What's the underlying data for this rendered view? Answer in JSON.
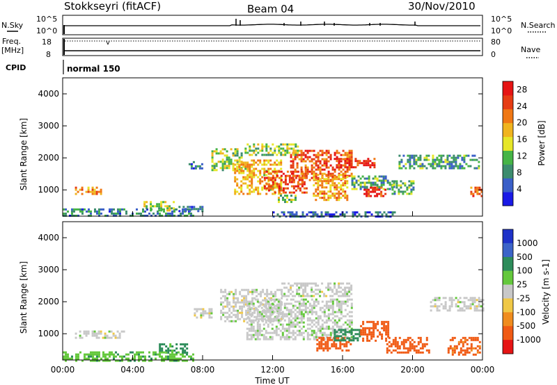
{
  "header": {
    "station": "Stokkseyri (fitACF)",
    "beam": "Beam 04",
    "date": "30/Nov/2010"
  },
  "strip_labels": {
    "nsky_label": "N.Sky",
    "nsky_top": "10^5",
    "nsky_bottom": "10^0",
    "nsearch_label": "N.Search",
    "nsearch_top": "10^5",
    "nsearch_bottom": "10^0",
    "freq_label_1": "Freq.",
    "freq_label_2": "[MHz]",
    "freq_top": "18",
    "freq_bottom": "8",
    "nave_label": "Nave",
    "nave_top": "80",
    "nave_bottom": "0",
    "cpid_label": "CPID",
    "cpid_value": "normal 150"
  },
  "colors": {
    "power": [
      "#1a1ae6",
      "#3a5fc8",
      "#3c8c6e",
      "#46b446",
      "#e6e628",
      "#f0b41e",
      "#f07814",
      "#e63c14",
      "#e61414"
    ],
    "velocity": [
      "#e61414",
      "#f05a14",
      "#f08c1e",
      "#f0c846",
      "#c8c8c8",
      "#64c83c",
      "#2d8c5a",
      "#3c64c8",
      "#1e32c8"
    ]
  },
  "chart_data": [
    {
      "type": "heatmap",
      "title": "Power",
      "xlabel": "",
      "ylabel": "Slant Range [km]",
      "xlim": [
        "00:00",
        "00:00"
      ],
      "ylim": [
        180,
        4500
      ],
      "x_ticks": [
        "00:00",
        "04:00",
        "08:00",
        "12:00",
        "16:00",
        "20:00",
        "00:00"
      ],
      "y_ticks": [
        "1000",
        "2000",
        "3000",
        "4000"
      ],
      "colorbar_label": "Power [dB]",
      "colorbar_ticks": [
        "4",
        "8",
        "12",
        "16",
        "20",
        "24",
        "28"
      ],
      "colorbar_range": [
        0,
        30
      ],
      "regions": [
        {
          "t0": 0.7,
          "t1": 2.2,
          "r0": 850,
          "r1": 1100,
          "value": 20
        },
        {
          "t0": 0.0,
          "t1": 7.5,
          "r0": 180,
          "r1": 420,
          "value": 8
        },
        {
          "t0": 4.5,
          "t1": 6.4,
          "r0": 380,
          "r1": 650,
          "value": 14
        },
        {
          "t0": 6.5,
          "t1": 8.0,
          "r0": 350,
          "r1": 500,
          "value": 6
        },
        {
          "t0": 7.2,
          "t1": 8.0,
          "r0": 1650,
          "r1": 1900,
          "value": 6
        },
        {
          "t0": 8.5,
          "t1": 10.2,
          "r0": 1600,
          "r1": 2300,
          "value": 14
        },
        {
          "t0": 9.8,
          "t1": 12.5,
          "r0": 850,
          "r1": 1950,
          "value": 18
        },
        {
          "t0": 11.5,
          "t1": 14.0,
          "r0": 900,
          "r1": 1600,
          "value": 25
        },
        {
          "t0": 13.0,
          "t1": 16.5,
          "r0": 1300,
          "r1": 2250,
          "value": 24
        },
        {
          "t0": 14.3,
          "t1": 16.3,
          "r0": 700,
          "r1": 1500,
          "value": 19
        },
        {
          "t0": 15.5,
          "t1": 17.8,
          "r0": 1700,
          "r1": 2000,
          "value": 27
        },
        {
          "t0": 16.5,
          "t1": 19.0,
          "r0": 1050,
          "r1": 1450,
          "value": 10
        },
        {
          "t0": 17.2,
          "t1": 18.4,
          "r0": 800,
          "r1": 1100,
          "value": 26
        },
        {
          "t0": 12.3,
          "t1": 13.3,
          "r0": 600,
          "r1": 850,
          "value": 12
        },
        {
          "t0": 10.4,
          "t1": 13.5,
          "r0": 2100,
          "r1": 2450,
          "value": 13
        },
        {
          "t0": 18.8,
          "t1": 20.0,
          "r0": 850,
          "r1": 1300,
          "value": 11
        },
        {
          "t0": 19.2,
          "t1": 23.8,
          "r0": 1700,
          "r1": 2100,
          "value": 9
        },
        {
          "t0": 23.3,
          "t1": 24.0,
          "r0": 800,
          "r1": 1100,
          "value": 22
        },
        {
          "t0": 12.0,
          "t1": 19.0,
          "r0": 180,
          "r1": 330,
          "value": 5
        }
      ]
    },
    {
      "type": "heatmap",
      "title": "Velocity",
      "xlabel": "Time UT",
      "ylabel": "Slant Range [km]",
      "xlim": [
        "00:00",
        "00:00"
      ],
      "ylim": [
        180,
        4500
      ],
      "x_ticks": [
        "00:00",
        "04:00",
        "08:00",
        "12:00",
        "16:00",
        "20:00",
        "00:00"
      ],
      "y_ticks": [
        "1000",
        "2000",
        "3000",
        "4000"
      ],
      "colorbar_label": "Velocity [m s-1]",
      "colorbar_ticks": [
        "1000",
        "500",
        "100",
        "25",
        "-25",
        "-100",
        "-500",
        "-1000"
      ],
      "regions": [
        {
          "t0": 0.7,
          "t1": 3.5,
          "r0": 850,
          "r1": 1100,
          "value": 0
        },
        {
          "t0": 0.0,
          "t1": 7.5,
          "r0": 180,
          "r1": 450,
          "value": 80
        },
        {
          "t0": 5.5,
          "t1": 7.2,
          "r0": 400,
          "r1": 700,
          "value": 120
        },
        {
          "t0": 9.0,
          "t1": 12.5,
          "r0": 1400,
          "r1": 2400,
          "value": 0
        },
        {
          "t0": 10.5,
          "t1": 16.5,
          "r0": 800,
          "r1": 2100,
          "value": 5
        },
        {
          "t0": 12.5,
          "t1": 16.5,
          "r0": 2200,
          "r1": 2600,
          "value": 0
        },
        {
          "t0": 14.5,
          "t1": 16.5,
          "r0": 500,
          "r1": 900,
          "value": -200
        },
        {
          "t0": 15.5,
          "t1": 17.0,
          "r0": 800,
          "r1": 1150,
          "value": 150
        },
        {
          "t0": 17.0,
          "t1": 18.6,
          "r0": 800,
          "r1": 1400,
          "value": -250
        },
        {
          "t0": 18.5,
          "t1": 21.0,
          "r0": 400,
          "r1": 900,
          "value": -150
        },
        {
          "t0": 21.0,
          "t1": 24.0,
          "r0": 1750,
          "r1": 2150,
          "value": 0
        },
        {
          "t0": 22.0,
          "t1": 23.8,
          "r0": 350,
          "r1": 900,
          "value": -120
        },
        {
          "t0": 7.5,
          "t1": 8.5,
          "r0": 1500,
          "r1": 1800,
          "value": 0
        }
      ]
    }
  ]
}
